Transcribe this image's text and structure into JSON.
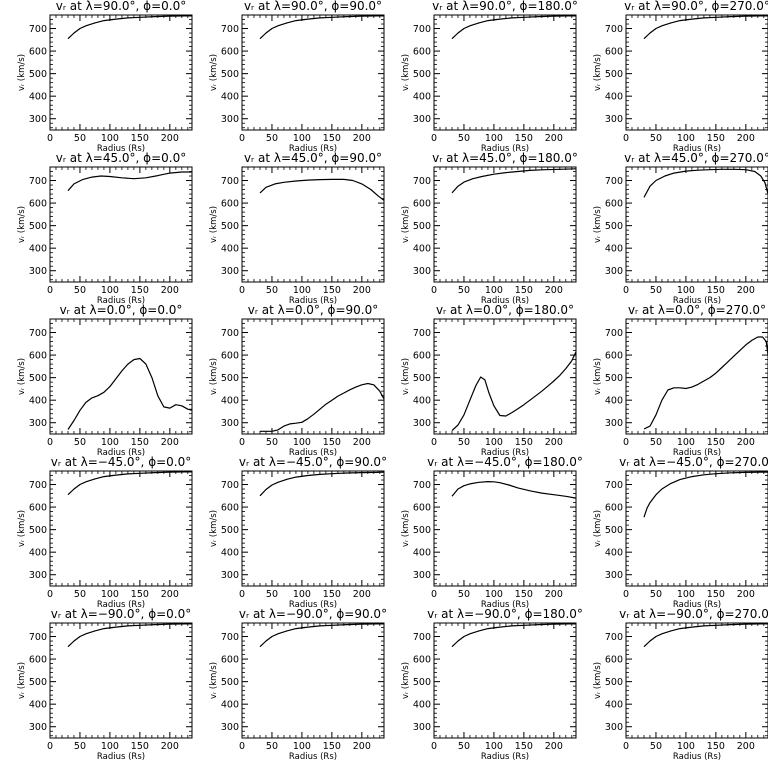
{
  "chart_data": [
    {
      "type": "line",
      "title": "vᵣ at λ=90.0°, ϕ=0.0°",
      "xlabel": "Radius (Rs)",
      "ylabel": "vᵣ (km/s)",
      "xlim": [
        0,
        237
      ],
      "ylim": [
        250,
        760
      ],
      "xticks": [
        "0",
        "50",
        "100",
        "150",
        "200"
      ],
      "yticks": [
        "300",
        "400",
        "500",
        "600",
        "700"
      ],
      "x": [
        30,
        40,
        50,
        60,
        75,
        90,
        110,
        130,
        150,
        175,
        200,
        225,
        237
      ],
      "y": [
        655,
        680,
        700,
        712,
        725,
        735,
        742,
        747,
        750,
        753,
        755,
        756,
        756
      ]
    },
    {
      "type": "line",
      "title": "vᵣ at λ=90.0°, ϕ=90.0°",
      "xlabel": "Radius (Rs)",
      "ylabel": "vᵣ (km/s)",
      "xlim": [
        0,
        237
      ],
      "ylim": [
        250,
        760
      ],
      "xticks": [
        "0",
        "50",
        "100",
        "150",
        "200"
      ],
      "yticks": [
        "300",
        "400",
        "500",
        "600",
        "700"
      ],
      "x": [
        30,
        40,
        50,
        60,
        75,
        90,
        110,
        130,
        150,
        175,
        200,
        225,
        237
      ],
      "y": [
        655,
        680,
        700,
        712,
        725,
        735,
        742,
        747,
        750,
        753,
        755,
        756,
        756
      ]
    },
    {
      "type": "line",
      "title": "vᵣ at λ=90.0°, ϕ=180.0°",
      "xlabel": "Radius (Rs)",
      "ylabel": "vᵣ (km/s)",
      "xlim": [
        0,
        237
      ],
      "ylim": [
        250,
        760
      ],
      "xticks": [
        "0",
        "50",
        "100",
        "150",
        "200"
      ],
      "yticks": [
        "300",
        "400",
        "500",
        "600",
        "700"
      ],
      "x": [
        30,
        40,
        50,
        60,
        75,
        90,
        110,
        130,
        150,
        175,
        200,
        225,
        237
      ],
      "y": [
        655,
        680,
        700,
        712,
        725,
        735,
        742,
        747,
        750,
        753,
        755,
        756,
        756
      ]
    },
    {
      "type": "line",
      "title": "vᵣ at λ=90.0°, ϕ=270.0°",
      "xlabel": "Radius (Rs)",
      "ylabel": "vᵣ (km/s)",
      "xlim": [
        0,
        237
      ],
      "ylim": [
        250,
        760
      ],
      "xticks": [
        "0",
        "50",
        "100",
        "150",
        "200"
      ],
      "yticks": [
        "300",
        "400",
        "500",
        "600",
        "700"
      ],
      "x": [
        30,
        40,
        50,
        60,
        75,
        90,
        110,
        130,
        150,
        175,
        200,
        225,
        237
      ],
      "y": [
        655,
        680,
        700,
        712,
        725,
        735,
        742,
        747,
        750,
        753,
        755,
        756,
        756
      ]
    },
    {
      "type": "line",
      "title": "vᵣ at λ=45.0°, ϕ=0.0°",
      "xlabel": "Radius (Rs)",
      "ylabel": "vᵣ (km/s)",
      "xlim": [
        0,
        237
      ],
      "ylim": [
        250,
        760
      ],
      "xticks": [
        "0",
        "50",
        "100",
        "150",
        "200"
      ],
      "yticks": [
        "300",
        "400",
        "500",
        "600",
        "700"
      ],
      "x": [
        30,
        40,
        55,
        70,
        85,
        100,
        120,
        140,
        160,
        180,
        200,
        220,
        237
      ],
      "y": [
        655,
        685,
        705,
        715,
        720,
        718,
        712,
        708,
        712,
        722,
        733,
        738,
        738
      ]
    },
    {
      "type": "line",
      "title": "vᵣ at λ=45.0°, ϕ=90.0°",
      "xlabel": "Radius (Rs)",
      "ylabel": "vᵣ (km/s)",
      "xlim": [
        0,
        237
      ],
      "ylim": [
        250,
        760
      ],
      "xticks": [
        "0",
        "50",
        "100",
        "150",
        "200"
      ],
      "yticks": [
        "300",
        "400",
        "500",
        "600",
        "700"
      ],
      "x": [
        30,
        40,
        55,
        70,
        90,
        110,
        130,
        150,
        170,
        185,
        200,
        215,
        228,
        237
      ],
      "y": [
        645,
        670,
        685,
        692,
        698,
        702,
        704,
        705,
        705,
        700,
        685,
        660,
        630,
        612
      ]
    },
    {
      "type": "line",
      "title": "vᵣ at λ=45.0°, ϕ=180.0°",
      "xlabel": "Radius (Rs)",
      "ylabel": "vᵣ (km/s)",
      "xlim": [
        0,
        237
      ],
      "ylim": [
        250,
        760
      ],
      "xticks": [
        "0",
        "50",
        "100",
        "150",
        "200"
      ],
      "yticks": [
        "300",
        "400",
        "500",
        "600",
        "700"
      ],
      "x": [
        30,
        40,
        50,
        65,
        80,
        100,
        120,
        140,
        160,
        185,
        210,
        237
      ],
      "y": [
        645,
        675,
        693,
        708,
        718,
        728,
        735,
        740,
        745,
        748,
        750,
        752
      ]
    },
    {
      "type": "line",
      "title": "vᵣ at λ=45.0°, ϕ=270.0°",
      "xlabel": "Radius (Rs)",
      "ylabel": "vᵣ (km/s)",
      "xlim": [
        0,
        237
      ],
      "ylim": [
        250,
        760
      ],
      "xticks": [
        "0",
        "50",
        "100",
        "150",
        "200"
      ],
      "yticks": [
        "300",
        "400",
        "500",
        "600",
        "700"
      ],
      "x": [
        30,
        40,
        50,
        65,
        80,
        100,
        120,
        140,
        160,
        180,
        200,
        215,
        225,
        232,
        237
      ],
      "y": [
        625,
        675,
        700,
        720,
        733,
        742,
        746,
        748,
        750,
        750,
        748,
        740,
        720,
        690,
        640
      ]
    },
    {
      "type": "line",
      "title": "vᵣ at λ=0.0°, ϕ=0.0°",
      "xlabel": "Radius (Rs)",
      "ylabel": "vᵣ (km/s)",
      "xlim": [
        0,
        237
      ],
      "ylim": [
        250,
        760
      ],
      "xticks": [
        "0",
        "50",
        "100",
        "150",
        "200"
      ],
      "yticks": [
        "300",
        "400",
        "500",
        "600",
        "700"
      ],
      "x": [
        30,
        40,
        50,
        60,
        70,
        80,
        90,
        100,
        110,
        120,
        130,
        140,
        150,
        160,
        170,
        180,
        190,
        200,
        210,
        220,
        230,
        237
      ],
      "y": [
        270,
        310,
        355,
        390,
        410,
        420,
        435,
        460,
        495,
        530,
        560,
        580,
        585,
        560,
        500,
        420,
        370,
        365,
        380,
        375,
        360,
        355
      ]
    },
    {
      "type": "line",
      "title": "vᵣ at λ=0.0°, ϕ=90.0°",
      "xlabel": "Radius (Rs)",
      "ylabel": "vᵣ (km/s)",
      "xlim": [
        0,
        237
      ],
      "ylim": [
        250,
        760
      ],
      "xticks": [
        "0",
        "50",
        "100",
        "150",
        "200"
      ],
      "yticks": [
        "300",
        "400",
        "500",
        "600",
        "700"
      ],
      "x": [
        30,
        40,
        50,
        60,
        70,
        80,
        90,
        100,
        110,
        120,
        130,
        140,
        150,
        160,
        170,
        180,
        190,
        200,
        210,
        220,
        230,
        237
      ],
      "y": [
        262,
        262,
        262,
        268,
        285,
        295,
        298,
        302,
        318,
        338,
        360,
        382,
        400,
        418,
        432,
        446,
        458,
        468,
        474,
        468,
        440,
        405
      ]
    },
    {
      "type": "line",
      "title": "vᵣ at λ=0.0°, ϕ=180.0°",
      "xlabel": "Radius (Rs)",
      "ylabel": "vᵣ (km/s)",
      "xlim": [
        0,
        237
      ],
      "ylim": [
        250,
        760
      ],
      "xticks": [
        "0",
        "50",
        "100",
        "150",
        "200"
      ],
      "yticks": [
        "300",
        "400",
        "500",
        "600",
        "700"
      ],
      "x": [
        30,
        40,
        50,
        60,
        70,
        78,
        85,
        92,
        100,
        110,
        120,
        130,
        140,
        150,
        160,
        170,
        180,
        190,
        200,
        210,
        220,
        230,
        237
      ],
      "y": [
        265,
        290,
        335,
        400,
        465,
        503,
        490,
        430,
        375,
        332,
        330,
        345,
        362,
        380,
        400,
        420,
        440,
        462,
        485,
        510,
        540,
        575,
        615
      ]
    },
    {
      "type": "line",
      "title": "vᵣ at λ=0.0°, ϕ=270.0°",
      "xlabel": "Radius (Rs)",
      "ylabel": "vᵣ (km/s)",
      "xlim": [
        0,
        237
      ],
      "ylim": [
        250,
        760
      ],
      "xticks": [
        "0",
        "50",
        "100",
        "150",
        "200"
      ],
      "yticks": [
        "300",
        "400",
        "500",
        "600",
        "700"
      ],
      "x": [
        30,
        40,
        50,
        60,
        70,
        80,
        90,
        100,
        110,
        120,
        130,
        140,
        150,
        160,
        170,
        180,
        190,
        200,
        210,
        220,
        228,
        234,
        237
      ],
      "y": [
        272,
        285,
        335,
        400,
        445,
        455,
        455,
        452,
        458,
        470,
        485,
        500,
        520,
        545,
        570,
        595,
        620,
        645,
        665,
        680,
        680,
        660,
        600
      ]
    },
    {
      "type": "line",
      "title": "vᵣ at λ=−45.0°, ϕ=0.0°",
      "xlabel": "Radius (Rs)",
      "ylabel": "vᵣ (km/s)",
      "xlim": [
        0,
        237
      ],
      "ylim": [
        250,
        760
      ],
      "xticks": [
        "0",
        "50",
        "100",
        "150",
        "200"
      ],
      "yticks": [
        "300",
        "400",
        "500",
        "600",
        "700"
      ],
      "x": [
        30,
        40,
        50,
        60,
        75,
        90,
        110,
        130,
        150,
        175,
        200,
        225,
        237
      ],
      "y": [
        655,
        680,
        700,
        712,
        725,
        735,
        742,
        747,
        750,
        753,
        755,
        756,
        756
      ]
    },
    {
      "type": "line",
      "title": "vᵣ at λ=−45.0°, ϕ=90.0°",
      "xlabel": "Radius (Rs)",
      "ylabel": "vᵣ (km/s)",
      "xlim": [
        0,
        237
      ],
      "ylim": [
        250,
        760
      ],
      "xticks": [
        "0",
        "50",
        "100",
        "150",
        "200"
      ],
      "yticks": [
        "300",
        "400",
        "500",
        "600",
        "700"
      ],
      "x": [
        30,
        40,
        50,
        60,
        75,
        90,
        110,
        130,
        150,
        175,
        200,
        225,
        237
      ],
      "y": [
        650,
        678,
        698,
        710,
        723,
        733,
        740,
        745,
        748,
        751,
        753,
        754,
        755
      ]
    },
    {
      "type": "line",
      "title": "vᵣ at λ=−45.0°, ϕ=180.0°",
      "xlabel": "Radius (Rs)",
      "ylabel": "vᵣ (km/s)",
      "xlim": [
        0,
        237
      ],
      "ylim": [
        250,
        760
      ],
      "xticks": [
        "0",
        "50",
        "100",
        "150",
        "200"
      ],
      "yticks": [
        "300",
        "400",
        "500",
        "600",
        "700"
      ],
      "x": [
        30,
        40,
        50,
        60,
        75,
        90,
        100,
        110,
        125,
        140,
        160,
        180,
        200,
        220,
        237
      ],
      "y": [
        648,
        680,
        695,
        703,
        710,
        713,
        712,
        708,
        698,
        685,
        672,
        662,
        655,
        648,
        640
      ]
    },
    {
      "type": "line",
      "title": "vᵣ at λ=−45.0°, ϕ=270.0°",
      "xlabel": "Radius (Rs)",
      "ylabel": "vᵣ (km/s)",
      "xlim": [
        0,
        237
      ],
      "ylim": [
        250,
        760
      ],
      "xticks": [
        "0",
        "50",
        "100",
        "150",
        "200"
      ],
      "yticks": [
        "300",
        "400",
        "500",
        "600",
        "700"
      ],
      "x": [
        30,
        35,
        40,
        50,
        60,
        75,
        90,
        110,
        130,
        150,
        175,
        200,
        225,
        237
      ],
      "y": [
        555,
        595,
        620,
        655,
        680,
        705,
        722,
        735,
        743,
        748,
        752,
        754,
        755,
        755
      ]
    },
    {
      "type": "line",
      "title": "vᵣ at λ=−90.0°, ϕ=0.0°",
      "xlabel": "Radius (Rs)",
      "ylabel": "vᵣ (km/s)",
      "xlim": [
        0,
        237
      ],
      "ylim": [
        250,
        760
      ],
      "xticks": [
        "0",
        "50",
        "100",
        "150",
        "200"
      ],
      "yticks": [
        "300",
        "400",
        "500",
        "600",
        "700"
      ],
      "x": [
        30,
        40,
        50,
        60,
        75,
        90,
        110,
        130,
        150,
        175,
        200,
        225,
        237
      ],
      "y": [
        655,
        680,
        700,
        712,
        725,
        735,
        742,
        747,
        750,
        753,
        755,
        756,
        756
      ]
    },
    {
      "type": "line",
      "title": "vᵣ at λ=−90.0°, ϕ=90.0°",
      "xlabel": "Radius (Rs)",
      "ylabel": "vᵣ (km/s)",
      "xlim": [
        0,
        237
      ],
      "ylim": [
        250,
        760
      ],
      "xticks": [
        "0",
        "50",
        "100",
        "150",
        "200"
      ],
      "yticks": [
        "300",
        "400",
        "500",
        "600",
        "700"
      ],
      "x": [
        30,
        40,
        50,
        60,
        75,
        90,
        110,
        130,
        150,
        175,
        200,
        225,
        237
      ],
      "y": [
        655,
        680,
        700,
        712,
        725,
        735,
        742,
        747,
        750,
        753,
        755,
        756,
        756
      ]
    },
    {
      "type": "line",
      "title": "vᵣ at λ=−90.0°, ϕ=180.0°",
      "xlabel": "Radius (Rs)",
      "ylabel": "vᵣ (km/s)",
      "xlim": [
        0,
        237
      ],
      "ylim": [
        250,
        760
      ],
      "xticks": [
        "0",
        "50",
        "100",
        "150",
        "200"
      ],
      "yticks": [
        "300",
        "400",
        "500",
        "600",
        "700"
      ],
      "x": [
        30,
        40,
        50,
        60,
        75,
        90,
        110,
        130,
        150,
        175,
        200,
        225,
        237
      ],
      "y": [
        655,
        680,
        700,
        712,
        725,
        735,
        742,
        747,
        750,
        753,
        755,
        756,
        756
      ]
    },
    {
      "type": "line",
      "title": "vᵣ at λ=−90.0°, ϕ=270.0°",
      "xlabel": "Radius (Rs)",
      "ylabel": "vᵣ (km/s)",
      "xlim": [
        0,
        237
      ],
      "ylim": [
        250,
        760
      ],
      "xticks": [
        "0",
        "50",
        "100",
        "150",
        "200"
      ],
      "yticks": [
        "300",
        "400",
        "500",
        "600",
        "700"
      ],
      "x": [
        30,
        40,
        50,
        60,
        75,
        90,
        110,
        130,
        150,
        175,
        200,
        225,
        237
      ],
      "y": [
        655,
        680,
        700,
        712,
        725,
        735,
        742,
        747,
        750,
        753,
        755,
        756,
        756
      ]
    }
  ]
}
